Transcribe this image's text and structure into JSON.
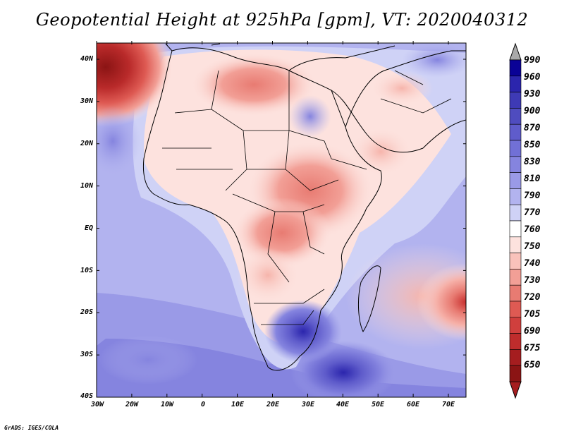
{
  "title": "Geopotential Height at 925hPa [gpm], VT: 2020040312",
  "credit": "GrADS: IGES/COLA",
  "map": {
    "region": "Africa",
    "variable": "Geopotential Height",
    "level": "925hPa",
    "units": "gpm",
    "valid_time": "2020040312"
  },
  "lat_labels": [
    "40N",
    "30N",
    "20N",
    "10N",
    "EQ",
    "10S",
    "20S",
    "30S",
    "40S"
  ],
  "lon_labels": [
    "30W",
    "20W",
    "10W",
    "0",
    "10E",
    "20E",
    "30E",
    "40E",
    "50E",
    "60E",
    "70E"
  ],
  "colorbar": {
    "levels": [
      "990",
      "960",
      "930",
      "900",
      "870",
      "850",
      "830",
      "810",
      "790",
      "770",
      "760",
      "750",
      "740",
      "730",
      "720",
      "705",
      "690",
      "675",
      "650"
    ],
    "colors": [
      "#0a0296",
      "#2b25ad",
      "#3e3ab5",
      "#4f4cbf",
      "#5f5ccb",
      "#7170d6",
      "#8584df",
      "#9a9ae7",
      "#b2b3ef",
      "#cfd2f6",
      "#ffffff",
      "#fde2de",
      "#f9c2bb",
      "#f29f96",
      "#e87b72",
      "#de5a53",
      "#d03f3d",
      "#bf2c2c",
      "#a51d1f",
      "#8b1414"
    ],
    "top_color": "#a9a9a9",
    "bottom_color": "#a51d1f"
  }
}
